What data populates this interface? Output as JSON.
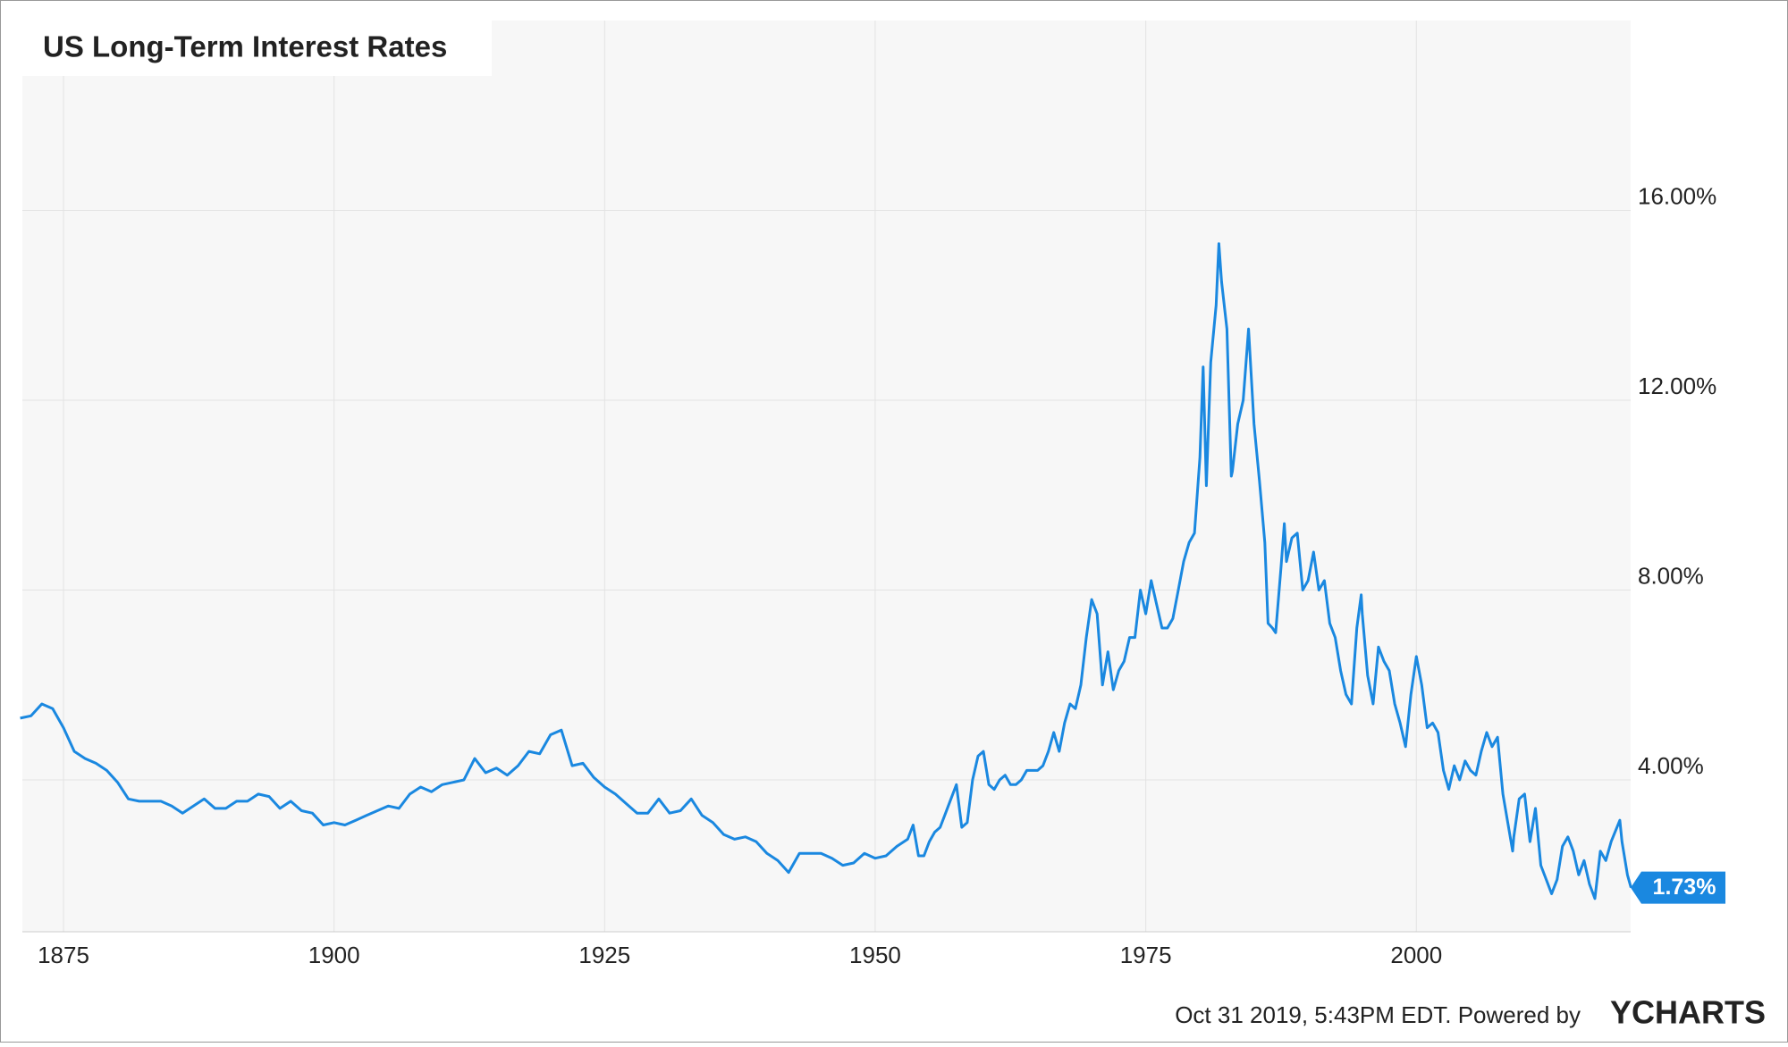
{
  "chart_data": {
    "type": "line",
    "title": "US Long-Term Interest Rates",
    "x": [
      1871,
      1872,
      1873,
      1874,
      1875,
      1876,
      1877,
      1878,
      1879,
      1880,
      1881,
      1882,
      1883,
      1884,
      1885,
      1886,
      1887,
      1888,
      1889,
      1890,
      1891,
      1892,
      1893,
      1894,
      1895,
      1896,
      1897,
      1898,
      1899,
      1900,
      1901,
      1902,
      1903,
      1904,
      1905,
      1906,
      1907,
      1908,
      1909,
      1910,
      1911,
      1912,
      1913,
      1914,
      1915,
      1916,
      1917,
      1918,
      1919,
      1920,
      1921,
      1922,
      1923,
      1924,
      1925,
      1926,
      1927,
      1928,
      1929,
      1930,
      1931,
      1932,
      1933,
      1934,
      1935,
      1936,
      1937,
      1938,
      1939,
      1940,
      1941,
      1942,
      1943,
      1944,
      1945,
      1946,
      1947,
      1948,
      1949,
      1950,
      1951,
      1952,
      1953,
      1953.5,
      1954,
      1954.5,
      1955,
      1955.5,
      1956,
      1956.5,
      1957,
      1957.5,
      1958,
      1958.5,
      1959,
      1959.5,
      1960,
      1960.5,
      1961,
      1961.5,
      1962,
      1962.5,
      1963,
      1963.5,
      1964,
      1964.5,
      1965,
      1965.5,
      1966,
      1966.5,
      1967,
      1967.5,
      1968,
      1968.5,
      1969,
      1969.5,
      1970,
      1970.5,
      1971,
      1971.5,
      1972,
      1972.5,
      1973,
      1973.5,
      1974,
      1974.5,
      1975,
      1975.5,
      1976,
      1976.5,
      1977,
      1977.5,
      1978,
      1978.5,
      1979,
      1979.5,
      1980,
      1980.3,
      1980.6,
      1981,
      1981.5,
      1981.75,
      1982,
      1982.5,
      1982.9,
      1983,
      1983.5,
      1984,
      1984.5,
      1985,
      1985.5,
      1986,
      1986.3,
      1986.7,
      1987,
      1987.5,
      1987.8,
      1988,
      1988.5,
      1989,
      1989.5,
      1990,
      1990.5,
      1991,
      1991.5,
      1992,
      1992.5,
      1993,
      1993.5,
      1994,
      1994.5,
      1994.9,
      1995,
      1995.5,
      1996,
      1996.5,
      1997,
      1997.5,
      1998,
      1998.5,
      1999,
      1999.5,
      2000,
      2000.5,
      2001,
      2001.5,
      2002,
      2002.5,
      2003,
      2003.5,
      2004,
      2004.5,
      2005,
      2005.5,
      2006,
      2006.5,
      2007,
      2007.5,
      2008,
      2008.9,
      2009,
      2009.5,
      2010,
      2010.5,
      2011,
      2011.5,
      2012,
      2012.5,
      2013,
      2013.5,
      2014,
      2014.5,
      2015,
      2015.5,
      2016,
      2016.5,
      2017,
      2017.5,
      2018,
      2018.8,
      2019,
      2019.5,
      2019.83
    ],
    "values": [
      5.3,
      5.35,
      5.6,
      5.5,
      5.1,
      4.6,
      4.45,
      4.35,
      4.2,
      3.95,
      3.6,
      3.55,
      3.55,
      3.55,
      3.45,
      3.3,
      3.45,
      3.6,
      3.4,
      3.4,
      3.55,
      3.55,
      3.7,
      3.65,
      3.4,
      3.55,
      3.35,
      3.3,
      3.05,
      3.1,
      3.05,
      3.15,
      3.25,
      3.35,
      3.45,
      3.4,
      3.7,
      3.85,
      3.75,
      3.9,
      3.95,
      4.0,
      4.45,
      4.15,
      4.25,
      4.1,
      4.3,
      4.6,
      4.55,
      4.95,
      5.05,
      4.3,
      4.35,
      4.05,
      3.85,
      3.7,
      3.5,
      3.3,
      3.3,
      3.6,
      3.3,
      3.35,
      3.6,
      3.25,
      3.1,
      2.85,
      2.75,
      2.8,
      2.7,
      2.45,
      2.3,
      2.05,
      2.45,
      2.45,
      2.45,
      2.35,
      2.2,
      2.25,
      2.45,
      2.35,
      2.4,
      2.6,
      2.75,
      3.05,
      2.4,
      2.4,
      2.7,
      2.9,
      3.0,
      3.3,
      3.6,
      3.9,
      3.0,
      3.1,
      4.0,
      4.5,
      4.6,
      3.9,
      3.8,
      4.0,
      4.1,
      3.9,
      3.9,
      4.0,
      4.2,
      4.2,
      4.2,
      4.3,
      4.6,
      5.0,
      4.6,
      5.2,
      5.6,
      5.5,
      6.0,
      7.0,
      7.8,
      7.5,
      6.0,
      6.7,
      5.9,
      6.3,
      6.5,
      7.0,
      7.0,
      8.0,
      7.5,
      8.2,
      7.7,
      7.2,
      7.2,
      7.4,
      8.0,
      8.6,
      9.0,
      9.2,
      10.8,
      12.7,
      10.2,
      12.8,
      14.0,
      15.3,
      14.5,
      13.5,
      10.4,
      10.5,
      11.5,
      12.0,
      13.5,
      11.5,
      10.3,
      9.0,
      7.3,
      7.2,
      7.1,
      8.5,
      9.4,
      8.6,
      9.1,
      9.2,
      8.0,
      8.2,
      8.8,
      8.0,
      8.2,
      7.3,
      7.0,
      6.3,
      5.8,
      5.6,
      7.2,
      7.9,
      7.5,
      6.2,
      5.6,
      6.8,
      6.5,
      6.3,
      5.6,
      5.2,
      4.7,
      5.8,
      6.6,
      6.0,
      5.1,
      5.2,
      5.0,
      4.2,
      3.8,
      4.3,
      4.0,
      4.4,
      4.2,
      4.1,
      4.6,
      5.0,
      4.7,
      4.9,
      3.7,
      2.5,
      2.8,
      3.6,
      3.7,
      2.7,
      3.4,
      2.2,
      1.9,
      1.6,
      1.9,
      2.6,
      2.8,
      2.5,
      2.0,
      2.3,
      1.8,
      1.5,
      2.5,
      2.3,
      2.7,
      3.15,
      2.7,
      2.0,
      1.73
    ],
    "color": "#1a88e0",
    "xlim": [
      1871.2,
      2019.8
    ],
    "xticks": [
      1875,
      1900,
      1925,
      1950,
      1975,
      2000
    ],
    "ylim": [
      0.8,
      20
    ],
    "yticks": [
      {
        "value": 4,
        "label": "4.00%"
      },
      {
        "value": 8,
        "label": "8.00%"
      },
      {
        "value": 12,
        "label": "12.00%"
      },
      {
        "value": 16,
        "label": "16.00%"
      }
    ],
    "grid": true,
    "annotations": [
      {
        "x": 2019.83,
        "value": 1.73,
        "label": "1.73%"
      }
    ],
    "footer": "Oct 31 2019, 5:43PM EDT. Powered by",
    "brand": "YCHARTS"
  }
}
